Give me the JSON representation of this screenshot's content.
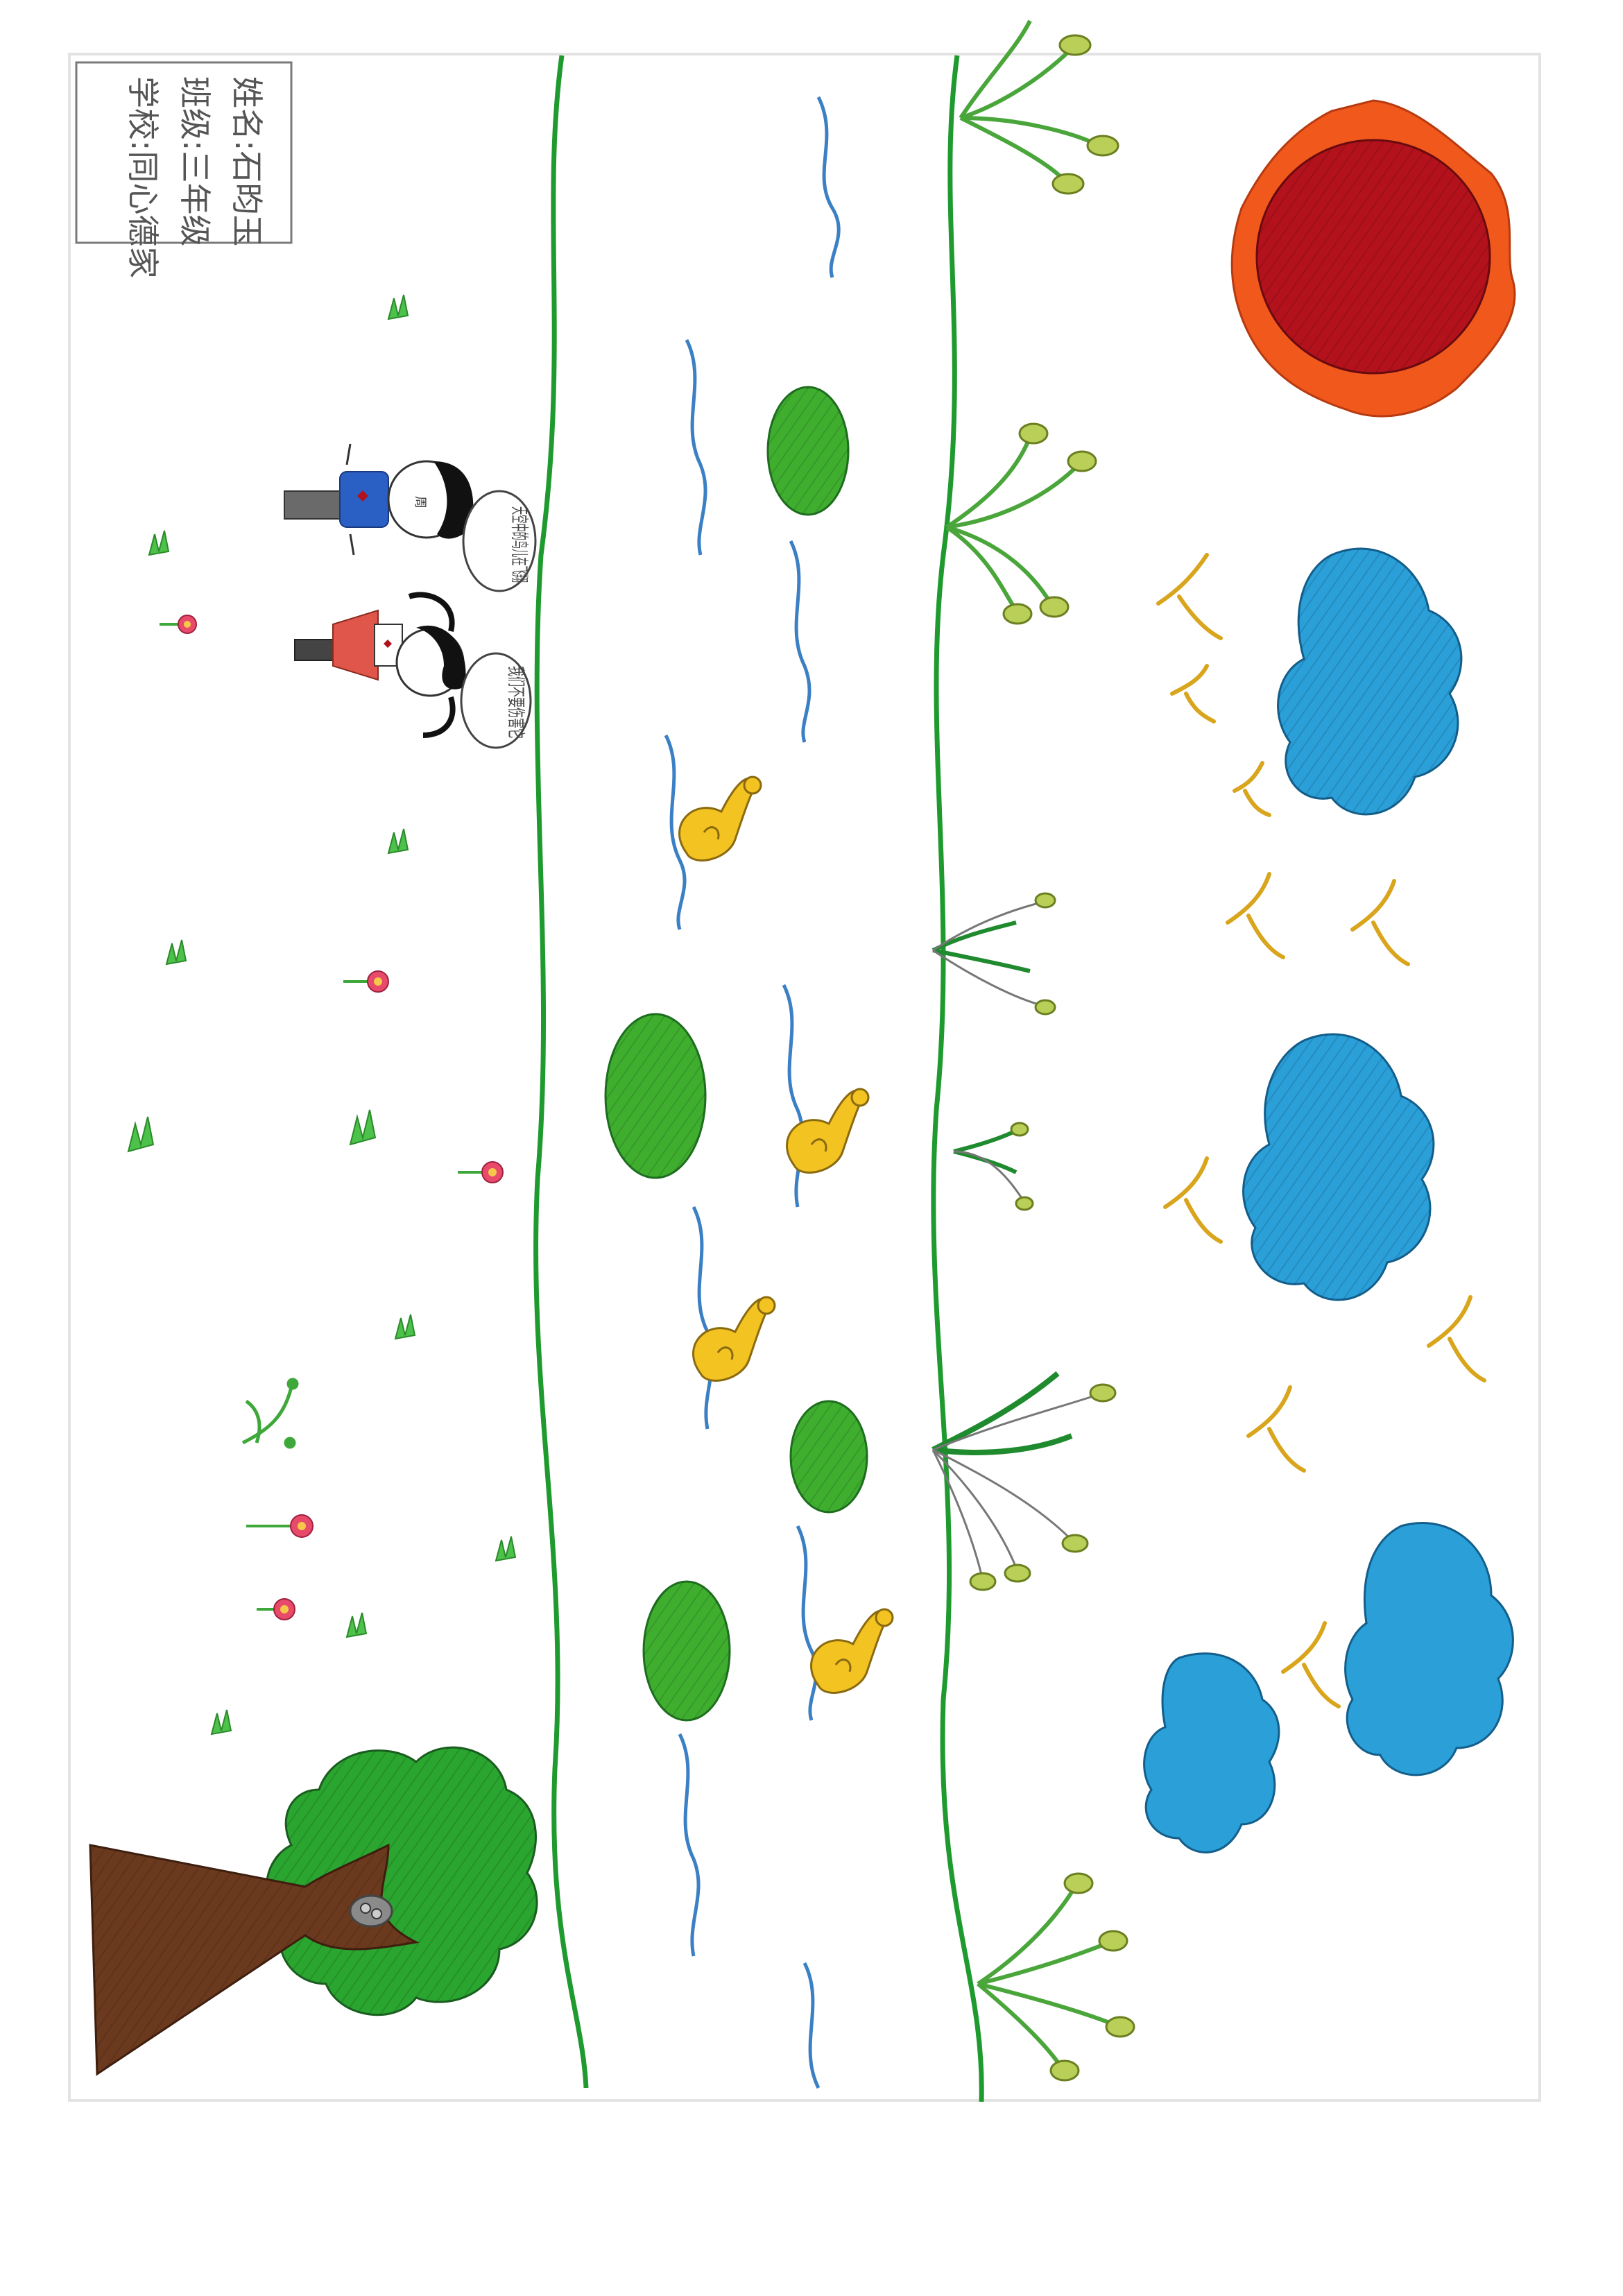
{
  "artwork": {
    "name_label": "姓名:石昀玉",
    "class_label": "班级:三年级",
    "school_label": "学校:同心德家",
    "boy_speech": "天空中的鸟儿在飞翔",
    "girl_speech": "我们不要伤害它",
    "boy_face_text": "周",
    "colors": {
      "background": "#ffffff",
      "river_bank": "#1f9a2e",
      "water_wave": "#3b7fc4",
      "lily_pad": "#3fae2f",
      "duck": "#f3c322",
      "reed": "#6ec84a",
      "sun_outer": "#f0581c",
      "sun_inner": "#b3121c",
      "cloud": "#2a9fd8",
      "bird": "#d8a51c",
      "tree_trunk": "#6b3a1e",
      "tree_leaves": "#2aa52f",
      "flower": "#e84a6a"
    }
  }
}
